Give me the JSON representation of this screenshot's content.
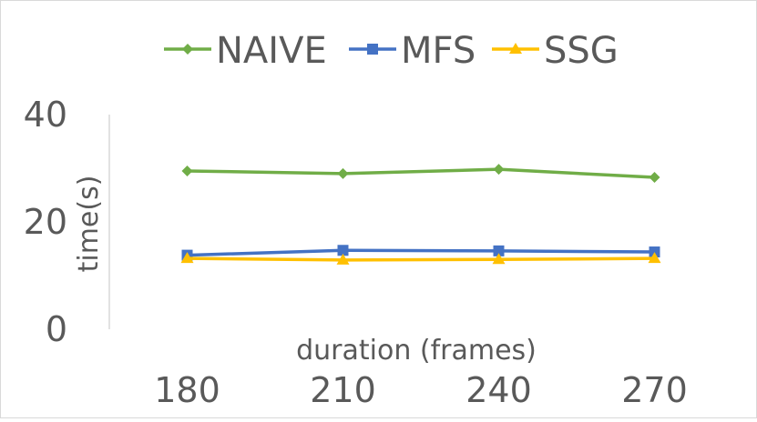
{
  "chart_data": {
    "type": "line",
    "title": "",
    "xlabel": "duration (frames)",
    "ylabel": "time(s)",
    "categories": [
      "180",
      "210",
      "240",
      "270"
    ],
    "ylim": [
      0,
      40
    ],
    "yticks": [
      "0",
      "20",
      "40"
    ],
    "grid": false,
    "legend_position": "top",
    "series": [
      {
        "name": "NAIVE",
        "values": [
          29.5,
          29.0,
          29.8,
          28.3
        ],
        "color": "#70ad47",
        "marker": "diamond"
      },
      {
        "name": "MFS",
        "values": [
          13.8,
          14.7,
          14.6,
          14.4
        ],
        "color": "#4472c4",
        "marker": "square"
      },
      {
        "name": "SSG",
        "values": [
          13.2,
          12.9,
          13.0,
          13.2
        ],
        "color": "#ffc000",
        "marker": "triangle"
      }
    ]
  }
}
